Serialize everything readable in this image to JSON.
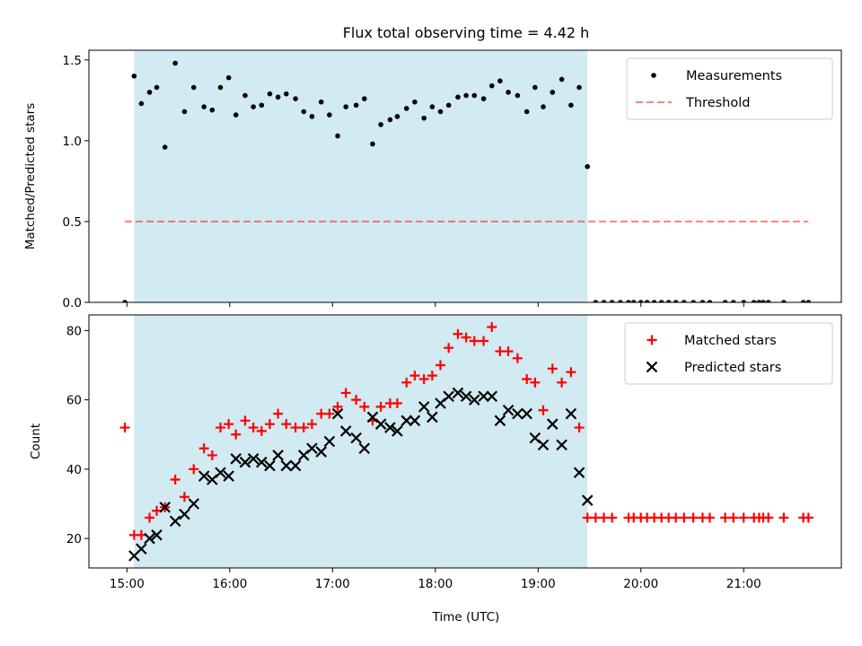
{
  "chart_data": [
    {
      "type": "scatter",
      "title": "Flux total observing time = 4.42 h",
      "xlabel": "",
      "ylabel": "Matched/Predicted stars",
      "xlim": [
        14.63,
        21.95
      ],
      "ylim": [
        0,
        1.56
      ],
      "yticks": [
        0.0,
        0.5,
        1.0,
        1.5
      ],
      "ytick_labels": [
        "0.0",
        "0.5",
        "1.0",
        "1.5"
      ],
      "shaded_span": {
        "start": 15.07,
        "end": 19.48,
        "color": "#add8e6"
      },
      "legend_position": "upper right",
      "series": [
        {
          "name": "Measurements",
          "kind": "points",
          "color": "#000000",
          "x": [
            14.98,
            15.07,
            15.14,
            15.22,
            15.29,
            15.37,
            15.47,
            15.56,
            15.65,
            15.75,
            15.83,
            15.91,
            15.99,
            16.06,
            16.15,
            16.23,
            16.31,
            16.39,
            16.47,
            16.55,
            16.64,
            16.72,
            16.8,
            16.89,
            16.97,
            17.05,
            17.13,
            17.23,
            17.31,
            17.39,
            17.47,
            17.56,
            17.63,
            17.72,
            17.8,
            17.89,
            17.97,
            18.05,
            18.13,
            18.22,
            18.3,
            18.38,
            18.47,
            18.55,
            18.63,
            18.71,
            18.8,
            18.89,
            18.97,
            19.05,
            19.14,
            19.23,
            19.32,
            19.4,
            19.48,
            19.56,
            19.64,
            19.72,
            19.8,
            19.88,
            19.93,
            20.0,
            20.06,
            20.13,
            20.2,
            20.27,
            20.34,
            20.42,
            20.51,
            20.6,
            20.67,
            20.82,
            20.9,
            21.0,
            21.1,
            21.15,
            21.19,
            21.24,
            21.39,
            21.58,
            21.63
          ],
          "values": [
            0.0,
            1.4,
            1.23,
            1.3,
            1.33,
            0.96,
            1.48,
            1.18,
            1.33,
            1.21,
            1.19,
            1.33,
            1.39,
            1.16,
            1.28,
            1.21,
            1.22,
            1.29,
            1.27,
            1.29,
            1.26,
            1.18,
            1.15,
            1.24,
            1.16,
            1.03,
            1.21,
            1.22,
            1.26,
            0.98,
            1.1,
            1.13,
            1.15,
            1.2,
            1.24,
            1.14,
            1.21,
            1.18,
            1.22,
            1.27,
            1.28,
            1.28,
            1.26,
            1.34,
            1.37,
            1.3,
            1.28,
            1.18,
            1.33,
            1.21,
            1.3,
            1.38,
            1.22,
            1.33,
            0.84,
            0.0,
            0.0,
            0.0,
            0.0,
            0.0,
            0.0,
            0.0,
            0.0,
            0.0,
            0.0,
            0.0,
            0.0,
            0.0,
            0.0,
            0.0,
            0.0,
            0.0,
            0.0,
            0.0,
            0.0,
            0.0,
            0.0,
            0.0,
            0.0,
            0.0,
            0.0
          ]
        },
        {
          "name": "Threshold",
          "kind": "dashed-line",
          "color": "#ff0000",
          "alpha": 0.5,
          "x": [
            14.98,
            21.63
          ],
          "values": [
            0.5,
            0.5
          ]
        }
      ]
    },
    {
      "type": "scatter",
      "title": "",
      "xlabel": "Time (UTC)",
      "ylabel": "Count",
      "xlim": [
        14.63,
        21.95
      ],
      "ylim": [
        11.5,
        84.5
      ],
      "yticks": [
        20,
        40,
        60,
        80
      ],
      "ytick_labels": [
        "20",
        "40",
        "60",
        "80"
      ],
      "xticks": [
        15,
        16,
        17,
        18,
        19,
        20,
        21
      ],
      "xtick_labels": [
        "15:00",
        "16:00",
        "17:00",
        "18:00",
        "19:00",
        "20:00",
        "21:00"
      ],
      "shaded_span": {
        "start": 15.07,
        "end": 19.48,
        "color": "#add8e6"
      },
      "legend_position": "upper right",
      "series": [
        {
          "name": "Matched stars",
          "marker": "plus",
          "color": "#ff0000",
          "x": [
            14.98,
            15.07,
            15.14,
            15.22,
            15.29,
            15.37,
            15.47,
            15.56,
            15.65,
            15.75,
            15.83,
            15.91,
            15.99,
            16.06,
            16.15,
            16.23,
            16.31,
            16.39,
            16.47,
            16.55,
            16.64,
            16.72,
            16.8,
            16.89,
            16.97,
            17.05,
            17.13,
            17.23,
            17.31,
            17.39,
            17.47,
            17.56,
            17.63,
            17.72,
            17.8,
            17.89,
            17.97,
            18.05,
            18.13,
            18.22,
            18.3,
            18.38,
            18.47,
            18.55,
            18.63,
            18.71,
            18.8,
            18.89,
            18.97,
            19.05,
            19.14,
            19.23,
            19.32,
            19.4,
            19.48,
            19.56,
            19.64,
            19.72,
            19.88,
            19.93,
            20.0,
            20.06,
            20.13,
            20.2,
            20.27,
            20.34,
            20.42,
            20.51,
            20.6,
            20.67,
            20.82,
            20.9,
            21.0,
            21.1,
            21.15,
            21.19,
            21.24,
            21.39,
            21.58,
            21.63
          ],
          "values": [
            52,
            21,
            21,
            26,
            28,
            29,
            37,
            32,
            40,
            46,
            44,
            52,
            53,
            50,
            54,
            52,
            51,
            53,
            56,
            53,
            52,
            52,
            53,
            56,
            56,
            58,
            62,
            60,
            58,
            54,
            58,
            59,
            59,
            65,
            67,
            66,
            67,
            70,
            75,
            79,
            78,
            77,
            77,
            81,
            74,
            74,
            72,
            66,
            65,
            57,
            69,
            65,
            68,
            52,
            26,
            26,
            26,
            26,
            26,
            26,
            26,
            26,
            26,
            26,
            26,
            26,
            26,
            26,
            26,
            26,
            26,
            26,
            26,
            26,
            26,
            26,
            26,
            26,
            26,
            26
          ]
        },
        {
          "name": "Predicted stars",
          "marker": "x",
          "color": "#000000",
          "x": [
            15.07,
            15.14,
            15.22,
            15.29,
            15.37,
            15.47,
            15.56,
            15.65,
            15.75,
            15.83,
            15.91,
            15.99,
            16.06,
            16.15,
            16.23,
            16.31,
            16.39,
            16.47,
            16.55,
            16.64,
            16.72,
            16.8,
            16.89,
            16.97,
            17.05,
            17.13,
            17.23,
            17.31,
            17.39,
            17.47,
            17.56,
            17.63,
            17.72,
            17.8,
            17.89,
            17.97,
            18.05,
            18.13,
            18.22,
            18.3,
            18.38,
            18.47,
            18.55,
            18.63,
            18.71,
            18.8,
            18.89,
            18.97,
            19.05,
            19.14,
            19.23,
            19.32,
            19.4,
            19.48
          ],
          "values": [
            15,
            17,
            20,
            21,
            29,
            25,
            27,
            30,
            38,
            37,
            39,
            38,
            43,
            42,
            43,
            42,
            41,
            44,
            41,
            41,
            44,
            46,
            45,
            48,
            56,
            51,
            49,
            46,
            55,
            53,
            52,
            51,
            54,
            54,
            58,
            55,
            59,
            61,
            62,
            61,
            60,
            61,
            61,
            54,
            57,
            56,
            56,
            49,
            47,
            53,
            47,
            56,
            39,
            31
          ]
        }
      ]
    }
  ]
}
